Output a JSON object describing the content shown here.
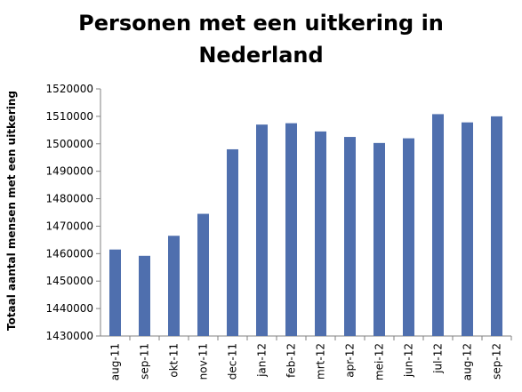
{
  "chart_data": {
    "type": "bar",
    "title": "Personen met een uitkering in Nederland",
    "xlabel": "",
    "ylabel": "Totaal aantal mensen met een uitkering",
    "categories": [
      "aug-11",
      "sep-11",
      "okt-11",
      "nov-11",
      "dec-11",
      "jan-12",
      "feb-12",
      "mrt-12",
      "apr-12",
      "mei-12",
      "jun-12",
      "jul-12",
      "aug-12",
      "sep-12"
    ],
    "values": [
      1461500,
      1459200,
      1466500,
      1474500,
      1498000,
      1507000,
      1507500,
      1504500,
      1502500,
      1500300,
      1502000,
      1510800,
      1507800,
      1510000
    ],
    "ylim": [
      1430000,
      1520000
    ],
    "ytick_step": 10000,
    "grid": false,
    "legend": "none",
    "bar_color": "#4F6FAE"
  }
}
